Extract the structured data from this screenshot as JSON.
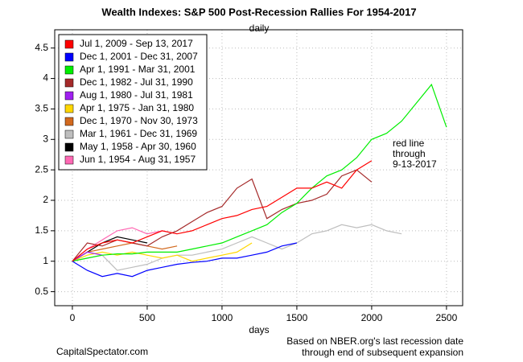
{
  "chart_data": {
    "type": "line",
    "title": "Wealth Indexes: S&P 500 Post-Recession Rallies For 1954-2017",
    "subtitle": "daily",
    "x_label": "days",
    "annotation": [
      "red line",
      "through",
      "9-13-2017"
    ],
    "source": "CapitalSpectator.com",
    "note": [
      "Based on NBER.org's last recession date",
      "through end of subsequent expansion"
    ],
    "grid": true,
    "legend": "top-left",
    "xlim": [
      -118,
      2608
    ],
    "ylim": [
      0.27,
      4.8
    ],
    "xticks": [
      0,
      500,
      1000,
      1500,
      2000,
      2500
    ],
    "yticks": [
      0.5,
      1,
      1.5,
      2,
      2.5,
      3,
      3.5,
      4,
      4.5
    ],
    "x": [
      0,
      100,
      200,
      300,
      400,
      500,
      600,
      700,
      800,
      900,
      1000,
      1100,
      1200,
      1300,
      1400,
      1500,
      1600,
      1700,
      1800,
      1900,
      2000,
      2100,
      2200,
      2300,
      2400,
      2500
    ],
    "series": [
      {
        "name": "Jul 1, 2009 - Sep 13, 2017",
        "color": "#ff0000",
        "values": [
          1.0,
          1.2,
          1.3,
          1.35,
          1.3,
          1.4,
          1.5,
          1.45,
          1.5,
          1.6,
          1.7,
          1.75,
          1.85,
          1.9,
          2.05,
          2.2,
          2.2,
          2.3,
          2.2,
          2.5,
          2.65,
          null,
          null,
          null,
          null,
          null
        ]
      },
      {
        "name": "Dec 1, 2001 - Dec 31, 2007",
        "color": "#0000ff",
        "values": [
          1.0,
          0.85,
          0.75,
          0.8,
          0.75,
          0.85,
          0.9,
          0.95,
          0.98,
          1.0,
          1.05,
          1.05,
          1.1,
          1.15,
          1.25,
          1.3,
          null,
          null,
          null,
          null,
          null,
          null,
          null,
          null,
          null,
          null
        ]
      },
      {
        "name": "Apr 1, 1991 - Mar 31, 2001",
        "color": "#00ee00",
        "values": [
          1.0,
          1.05,
          1.1,
          1.12,
          1.12,
          1.15,
          1.15,
          1.15,
          1.2,
          1.25,
          1.3,
          1.4,
          1.5,
          1.6,
          1.8,
          1.95,
          2.2,
          2.4,
          2.5,
          2.7,
          3.0,
          3.1,
          3.3,
          3.6,
          3.9,
          3.2
        ]
      },
      {
        "name": "Dec 1, 1982 - Jul 31, 1990",
        "color": "#a52a2a",
        "values": [
          1.0,
          1.3,
          1.25,
          1.35,
          1.3,
          1.25,
          1.4,
          1.5,
          1.65,
          1.8,
          1.9,
          2.2,
          2.35,
          1.7,
          1.85,
          1.95,
          2.0,
          2.1,
          2.4,
          2.5,
          2.3,
          null,
          null,
          null,
          null,
          null
        ]
      },
      {
        "name": "Aug 1, 1980 - Jul 31, 1981",
        "color": "#a020f0",
        "values": [
          1.0,
          1.15,
          1.1,
          null,
          null,
          null,
          null,
          null,
          null,
          null,
          null,
          null,
          null,
          null,
          null,
          null,
          null,
          null,
          null,
          null,
          null,
          null,
          null,
          null,
          null,
          null
        ]
      },
      {
        "name": "Apr 1, 1975 - Jan 31, 1980",
        "color": "#ffd700",
        "values": [
          1.0,
          1.1,
          1.15,
          1.1,
          1.15,
          1.1,
          1.05,
          1.1,
          1.0,
          1.05,
          1.1,
          1.15,
          1.3,
          null,
          null,
          null,
          null,
          null,
          null,
          null,
          null,
          null,
          null,
          null,
          null,
          null
        ]
      },
      {
        "name": "Dec 1, 1970 - Nov 30, 1973",
        "color": "#d2691e",
        "values": [
          1.0,
          1.15,
          1.2,
          1.25,
          1.3,
          1.25,
          1.2,
          1.25,
          null,
          null,
          null,
          null,
          null,
          null,
          null,
          null,
          null,
          null,
          null,
          null,
          null,
          null,
          null,
          null,
          null,
          null
        ]
      },
      {
        "name": "Mar 1, 1961 - Dec 31, 1969",
        "color": "#bebebe",
        "values": [
          1.0,
          1.05,
          1.1,
          0.85,
          0.9,
          0.95,
          1.05,
          1.1,
          1.1,
          1.15,
          1.2,
          1.3,
          1.4,
          1.3,
          1.2,
          1.3,
          1.45,
          1.5,
          1.6,
          1.55,
          1.6,
          1.5,
          1.45,
          null,
          null,
          null
        ]
      },
      {
        "name": "May 1, 1958 - Apr 30, 1960",
        "color": "#000000",
        "values": [
          1.0,
          1.15,
          1.3,
          1.4,
          1.35,
          1.3,
          null,
          null,
          null,
          null,
          null,
          null,
          null,
          null,
          null,
          null,
          null,
          null,
          null,
          null,
          null,
          null,
          null,
          null,
          null,
          null
        ]
      },
      {
        "name": "Jun 1, 1954 - Aug 31, 1957",
        "color": "#ff69b4",
        "values": [
          1.0,
          1.2,
          1.35,
          1.5,
          1.55,
          1.45,
          1.5,
          1.45,
          null,
          null,
          null,
          null,
          null,
          null,
          null,
          null,
          null,
          null,
          null,
          null,
          null,
          null,
          null,
          null,
          null,
          null
        ]
      }
    ]
  }
}
